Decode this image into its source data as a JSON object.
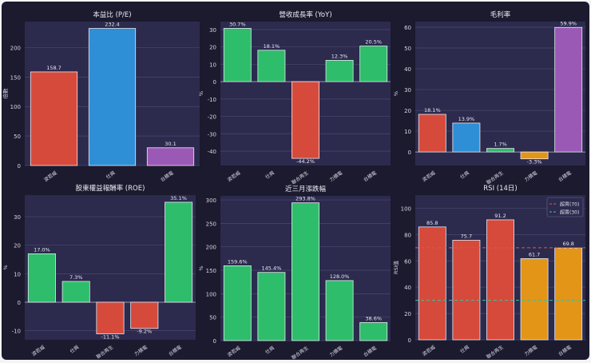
{
  "chart_data": [
    {
      "type": "bar",
      "title": "本益比 (P/E)",
      "ylabel": "倍數",
      "categories": [
        "波若威",
        "仕興",
        "台積電"
      ],
      "values": [
        158.7,
        232.4,
        30.1
      ],
      "labels": [
        "158.7",
        "232.4",
        "30.1"
      ],
      "colors": [
        "#d64a3b",
        "#2e8fd6",
        "#9b59b6"
      ],
      "ylim": [
        0,
        244
      ],
      "yticks": [
        0,
        50,
        100,
        150,
        200
      ],
      "grid": true
    },
    {
      "type": "bar",
      "title": "營收成長率 (YoY)",
      "ylabel": "%",
      "categories": [
        "波若威",
        "仕興",
        "聯合再生",
        "力積電",
        "台積電"
      ],
      "values": [
        30.7,
        18.1,
        -44.2,
        12.3,
        20.5
      ],
      "labels": [
        "30.7%",
        "18.1%",
        "-44.2%",
        "12.3%",
        "20.5%"
      ],
      "colors": [
        "#2ebd6b",
        "#2ebd6b",
        "#d64a3b",
        "#2ebd6b",
        "#2ebd6b"
      ],
      "ylim": [
        -48.3,
        34.6
      ],
      "yticks": [
        -40,
        -30,
        -20,
        -10,
        0,
        10,
        20,
        30
      ],
      "grid": true
    },
    {
      "type": "bar",
      "title": "毛利率",
      "ylabel": "%",
      "categories": [
        "波若威",
        "仕興",
        "聯合再生",
        "力積電",
        "台積電"
      ],
      "values": [
        18.1,
        13.9,
        1.7,
        -3.3,
        59.9
      ],
      "labels": [
        "18.1%",
        "13.9%",
        "1.7%",
        "-3.3%",
        "59.9%"
      ],
      "colors": [
        "#d64a3b",
        "#2e8fd6",
        "#2ebd6b",
        "#e39517",
        "#9b59b6"
      ],
      "ylim": [
        -6.5,
        62.7
      ],
      "yticks": [
        0,
        10,
        20,
        30,
        40,
        50,
        60
      ],
      "grid": true
    },
    {
      "type": "bar",
      "title": "股東權益報酬率 (ROE)",
      "ylabel": "%",
      "categories": [
        "波若威",
        "仕興",
        "聯合再生",
        "力積電",
        "台積電"
      ],
      "values": [
        17.0,
        7.3,
        -11.1,
        -9.2,
        35.1
      ],
      "labels": [
        "17.0%",
        "7.3%",
        "-11.1%",
        "-9.2%",
        "35.1%"
      ],
      "colors": [
        "#2ebd6b",
        "#2ebd6b",
        "#d64a3b",
        "#d64a3b",
        "#2ebd6b"
      ],
      "ylim": [
        -13.2,
        37.6
      ],
      "yticks": [
        -10,
        0,
        10,
        20,
        30
      ],
      "grid": true
    },
    {
      "type": "bar",
      "title": "近三月漲跌幅",
      "ylabel": "%",
      "categories": [
        "波若威",
        "仕興",
        "聯合再生",
        "力積電",
        "台積電"
      ],
      "values": [
        159.6,
        145.4,
        293.8,
        128.0,
        38.6
      ],
      "labels": [
        "159.6%",
        "145.4%",
        "293.8%",
        "128.0%",
        "38.6%"
      ],
      "colors": [
        "#2ebd6b",
        "#2ebd6b",
        "#2ebd6b",
        "#2ebd6b",
        "#2ebd6b"
      ],
      "ylim": [
        0,
        308.6
      ],
      "yticks": [
        0,
        50,
        100,
        150,
        200,
        250,
        300
      ],
      "grid": true
    },
    {
      "type": "bar",
      "title": "RSI (14日)",
      "ylabel": "RSI值",
      "categories": [
        "波若威",
        "仕興",
        "聯合再生",
        "力積電",
        "台積電"
      ],
      "values": [
        85.8,
        75.7,
        91.2,
        61.7,
        69.8
      ],
      "labels": [
        "85.8",
        "75.7",
        "91.2",
        "61.7",
        "69.8"
      ],
      "colors": [
        "#d64a3b",
        "#d64a3b",
        "#d64a3b",
        "#e39517",
        "#e39517"
      ],
      "ylim": [
        0,
        110
      ],
      "yticks": [
        0,
        20,
        40,
        60,
        80,
        100
      ],
      "grid": true,
      "reference_lines": [
        {
          "name": "超買(70)",
          "value": 70,
          "color": "#e05555"
        },
        {
          "name": "超賣(30)",
          "value": 30,
          "color": "#3fbfa0"
        }
      ],
      "legend": "top-right"
    }
  ]
}
